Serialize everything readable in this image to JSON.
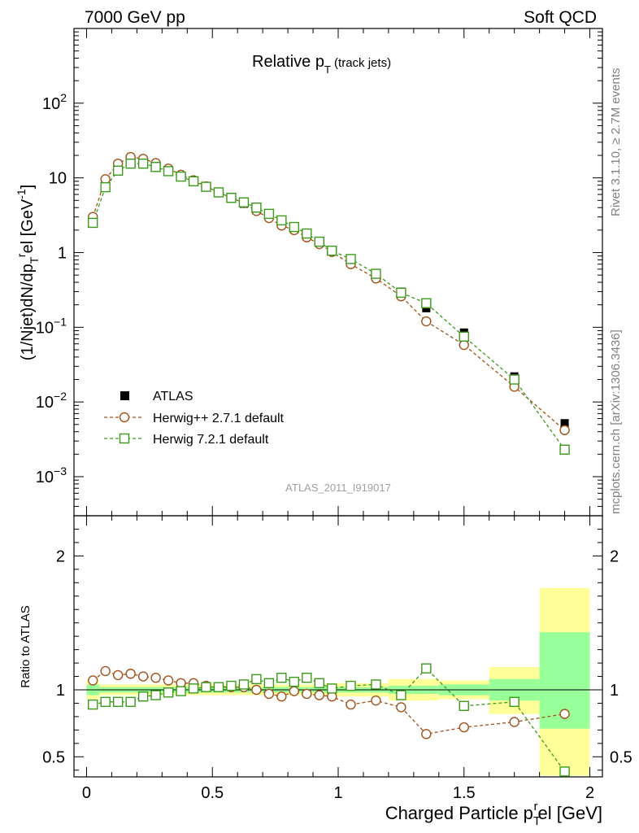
{
  "header": {
    "left": "7000 GeV pp",
    "right": "Soft QCD"
  },
  "side_text": {
    "rivet": "Rivet 3.1.10, ≥ 2.7M events",
    "mcplots": "mcplots.cern.ch [arXiv:1306.3436]"
  },
  "plot_title": {
    "main": "Relative p",
    "sub": "T",
    "suffix": " (track jets)"
  },
  "analysis_id": "ATLAS_2011_I919017",
  "colors": {
    "atlas": "#000000",
    "herwigpp": "#a0521a",
    "herwig7": "#3a9a1a",
    "band_outer": "#ffff99",
    "band_inner": "#99ff99"
  },
  "legend": [
    {
      "label": "ATLAS",
      "marker": "square-filled"
    },
    {
      "label": "Herwig++ 2.7.1 default",
      "marker": "circle-open"
    },
    {
      "label": "Herwig 7.2.1 default",
      "marker": "square-open"
    }
  ],
  "chart_data": [
    {
      "type": "scatter",
      "name": "main",
      "ylabel": "(1/Njet)dN/dp_T^rel [GeV^-1]",
      "ylog": true,
      "ylim": [
        0.0003,
        1000
      ],
      "xlim": [
        -0.05,
        2.05
      ],
      "ytick_labels": [
        {
          "v": 0.001,
          "base": "10",
          "exp": "−3"
        },
        {
          "v": 0.01,
          "base": "10",
          "exp": "−2"
        },
        {
          "v": 0.1,
          "base": "10",
          "exp": "−1"
        },
        {
          "v": 1,
          "text": "1"
        },
        {
          "v": 10,
          "text": "10"
        },
        {
          "v": 100,
          "base": "10",
          "exp": "2"
        }
      ],
      "x": [
        0.025,
        0.075,
        0.125,
        0.175,
        0.225,
        0.275,
        0.325,
        0.375,
        0.425,
        0.475,
        0.525,
        0.575,
        0.625,
        0.675,
        0.725,
        0.775,
        0.825,
        0.875,
        0.925,
        0.975,
        1.05,
        1.15,
        1.25,
        1.35,
        1.5,
        1.7,
        1.9
      ],
      "series": [
        {
          "name": "ATLAS",
          "values": [
            2.8,
            8.5,
            14.0,
            17.0,
            16.5,
            14.5,
            12.5,
            10.5,
            9.0,
            7.5,
            6.3,
            5.3,
            4.5,
            3.7,
            3.1,
            2.45,
            2.05,
            1.65,
            1.35,
            1.07,
            0.8,
            0.5,
            0.3,
            0.18,
            0.085,
            0.022,
            0.0052
          ]
        },
        {
          "name": "Herwig++ 2.7.1 default",
          "values": [
            3.0,
            9.6,
            15.5,
            19.0,
            18.0,
            15.8,
            13.3,
            11.0,
            9.3,
            7.7,
            6.4,
            5.4,
            4.6,
            3.6,
            2.9,
            2.3,
            2.0,
            1.6,
            1.3,
            1.02,
            0.7,
            0.45,
            0.26,
            0.12,
            0.058,
            0.016,
            0.0042
          ]
        },
        {
          "name": "Herwig 7.2.1 default",
          "values": [
            2.5,
            7.5,
            12.5,
            15.5,
            15.5,
            14.0,
            12.3,
            10.4,
            9.0,
            7.6,
            6.4,
            5.4,
            4.7,
            4.0,
            3.3,
            2.7,
            2.2,
            1.8,
            1.4,
            1.06,
            0.82,
            0.52,
            0.29,
            0.21,
            0.075,
            0.02,
            0.0023
          ]
        }
      ]
    },
    {
      "type": "scatter",
      "name": "ratio",
      "ylabel": "Ratio to ATLAS",
      "ylim": [
        0.35,
        2.3
      ],
      "xlim": [
        -0.05,
        2.05
      ],
      "yticks": [
        0.5,
        1,
        2
      ],
      "ytick_labels": [
        "0.5",
        "1",
        "2"
      ],
      "xticks": [
        0,
        0.5,
        1,
        1.5,
        2
      ],
      "xtick_labels": [
        "0",
        "0.5",
        "1",
        "1.5",
        "2"
      ],
      "xlabel": "Charged Particle p_T^rel [GeV]",
      "x": [
        0.025,
        0.075,
        0.125,
        0.175,
        0.225,
        0.275,
        0.325,
        0.375,
        0.425,
        0.475,
        0.525,
        0.575,
        0.625,
        0.675,
        0.725,
        0.775,
        0.825,
        0.875,
        0.925,
        0.975,
        1.05,
        1.15,
        1.25,
        1.35,
        1.5,
        1.7,
        1.9
      ],
      "series": [
        {
          "name": "Herwig++ 2.7.1 default",
          "values": [
            1.07,
            1.14,
            1.11,
            1.12,
            1.1,
            1.09,
            1.07,
            1.05,
            1.05,
            1.03,
            1.02,
            1.02,
            1.02,
            1.0,
            0.97,
            0.95,
            0.99,
            0.97,
            0.96,
            0.95,
            0.89,
            0.92,
            0.87,
            0.67,
            0.72,
            0.76,
            0.82
          ]
        },
        {
          "name": "Herwig 7.2.1 default",
          "values": [
            0.89,
            0.91,
            0.91,
            0.91,
            0.95,
            0.96,
            0.98,
            0.99,
            1.01,
            1.02,
            1.02,
            1.03,
            1.04,
            1.08,
            1.05,
            1.09,
            1.06,
            1.09,
            1.05,
            1.01,
            1.03,
            1.04,
            0.96,
            1.16,
            0.88,
            0.91,
            0.39
          ]
        }
      ],
      "bands": [
        {
          "x": [
            0.0,
            0.05
          ],
          "inner": [
            0.96,
            1.04
          ],
          "outer": [
            0.93,
            1.07
          ]
        },
        {
          "x": [
            0.05,
            0.95
          ],
          "inner": [
            0.98,
            1.02
          ],
          "outer": [
            0.96,
            1.04
          ]
        },
        {
          "x": [
            0.95,
            1.2
          ],
          "inner": [
            0.98,
            1.02
          ],
          "outer": [
            0.95,
            1.05
          ]
        },
        {
          "x": [
            1.2,
            1.4
          ],
          "inner": [
            0.97,
            1.03
          ],
          "outer": [
            0.92,
            1.08
          ]
        },
        {
          "x": [
            1.4,
            1.6
          ],
          "inner": [
            0.96,
            1.04
          ],
          "outer": [
            0.93,
            1.07
          ]
        },
        {
          "x": [
            1.6,
            1.8
          ],
          "inner": [
            0.92,
            1.08
          ],
          "outer": [
            0.82,
            1.17
          ]
        },
        {
          "x": [
            1.8,
            2.0
          ],
          "inner": [
            0.71,
            1.43
          ],
          "outer": [
            0.36,
            1.76
          ]
        }
      ]
    }
  ]
}
